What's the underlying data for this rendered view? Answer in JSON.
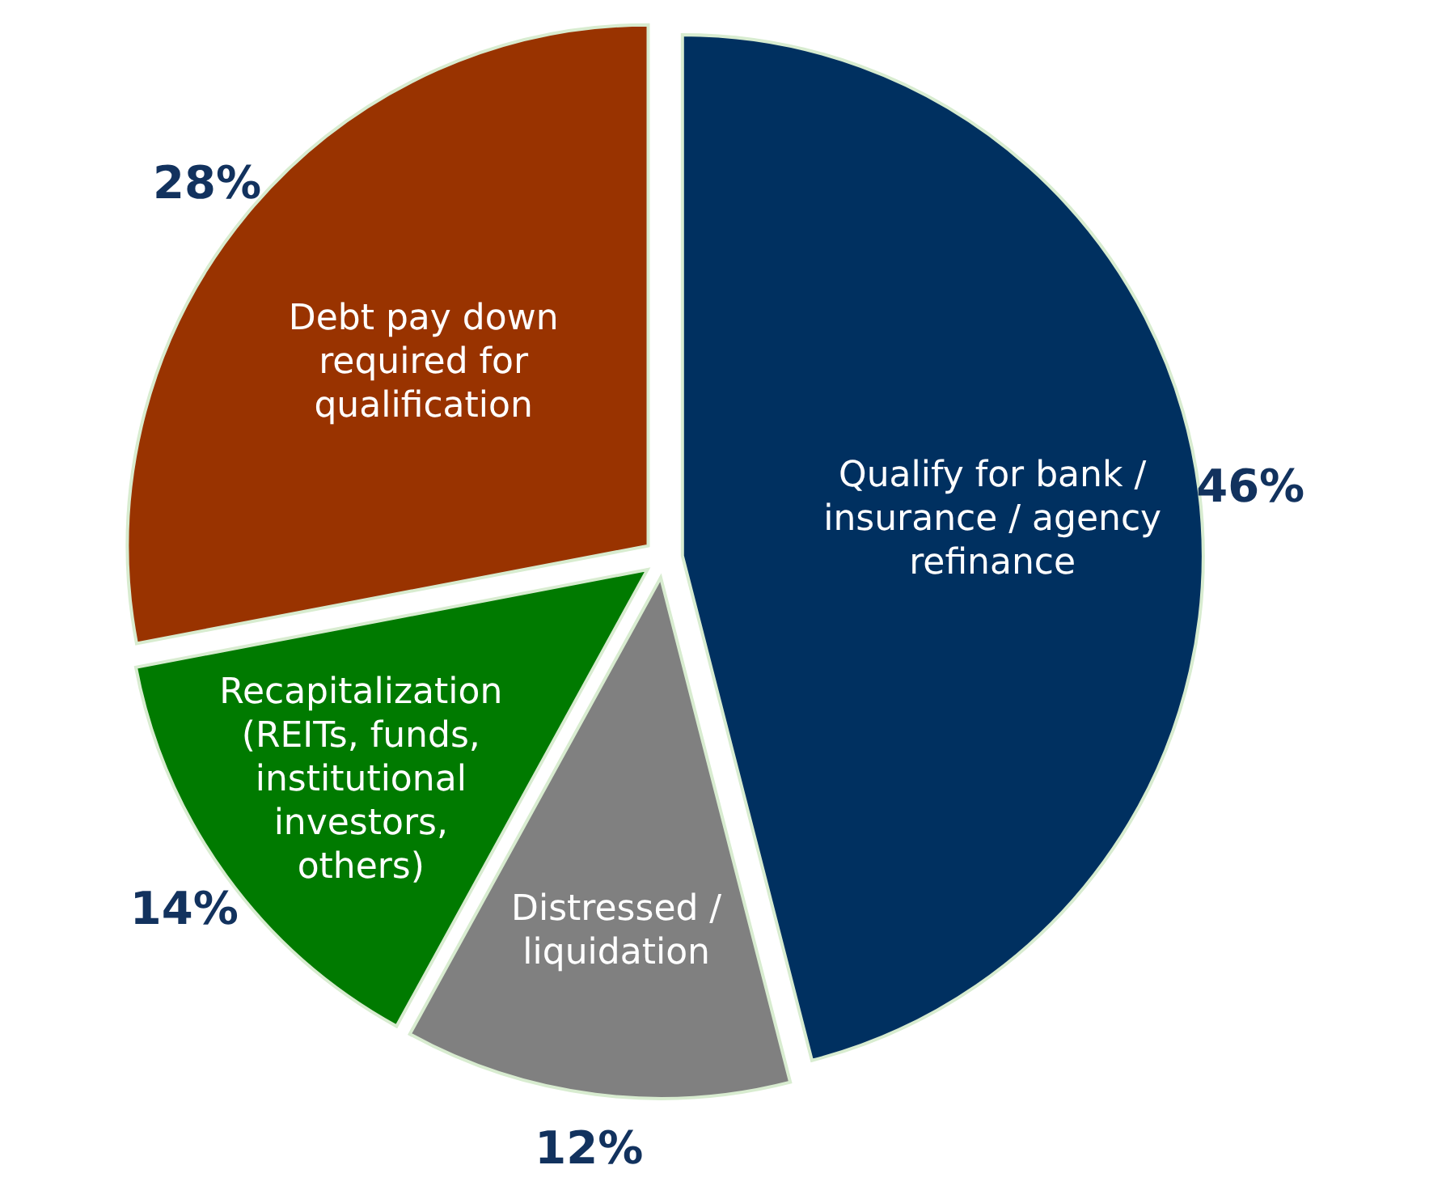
{
  "chart_data": {
    "type": "pie",
    "categories": [
      "Qualify for bank / insurance / agency refinance",
      "Distressed / liquidation",
      "Recapitalization (REITs, funds, institutional investors, others)",
      "Debt pay down required for qualification"
    ],
    "values": [
      46,
      12,
      14,
      28
    ],
    "value_labels": [
      "46%",
      "12%",
      "14%",
      "28%"
    ],
    "colors": [
      "#003060",
      "#808080",
      "#007a00",
      "#993300"
    ]
  }
}
